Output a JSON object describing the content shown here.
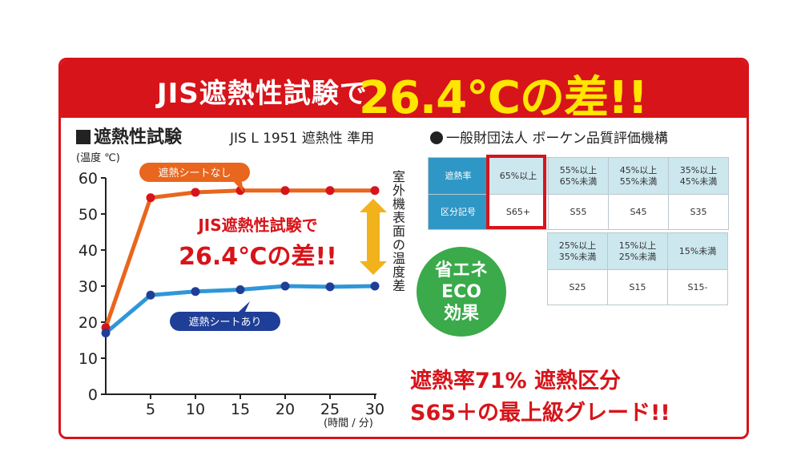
{
  "banner": {
    "prefix": "JIS遮熱性試験で",
    "highlight": "26.4℃の差!!"
  },
  "section": {
    "title": "遮熱性試験",
    "subtitle": "JIS L 1951 遮熱性 準用",
    "org": "一般財団法人 ボーケン品質評価機構"
  },
  "chart_data": {
    "type": "line",
    "ylabel": "(温度 ℃)",
    "xlabel": "(時間 / 分)",
    "x_ticks": [
      "5",
      "10",
      "15",
      "20",
      "25",
      "30"
    ],
    "y_ticks": [
      "0",
      "10",
      "20",
      "30",
      "40",
      "50",
      "60"
    ],
    "xlim": [
      0,
      30
    ],
    "ylim": [
      0,
      60
    ],
    "grid": false,
    "series": [
      {
        "name": "遮熱シートなし",
        "color": "#e8661e",
        "x": [
          0,
          5,
          10,
          15,
          20,
          25,
          30
        ],
        "y": [
          18.5,
          54.5,
          56,
          56.5,
          56.5,
          56.5,
          56.5
        ]
      },
      {
        "name": "遮熱シートあり",
        "color": "#2f97d8",
        "x": [
          0,
          5,
          10,
          15,
          20,
          25,
          30
        ],
        "y": [
          17,
          27.5,
          28.5,
          29,
          30,
          29.8,
          30
        ]
      }
    ],
    "annotation": {
      "line1": "JIS遮熱性試験で",
      "line2": "26.4℃の差!!"
    },
    "side_label": "室外機表面の温度差"
  },
  "eco": {
    "line1": "省エネ",
    "line2": "ECO",
    "line3": "効果"
  },
  "grade_table": {
    "top": {
      "row1": [
        "遮熱率",
        "65%以上",
        "55%以上\n65%未満",
        "45%以上\n55%未満",
        "35%以上\n45%未満"
      ],
      "row2": [
        "区分記号",
        "S65+",
        "S55",
        "S45",
        "S35"
      ]
    },
    "bottom": {
      "row1": [
        "25%以上\n35%未満",
        "15%以上\n25%未満",
        "15%未満"
      ],
      "row2": [
        "S25",
        "S15",
        "S15-"
      ]
    }
  },
  "summary": {
    "line1": "遮熱率71% 遮熱区分",
    "line2": "S65＋の最上級グレード!!"
  },
  "colors": {
    "red": "#d7141a",
    "yellow": "#ffe600",
    "orange": "#e8661e",
    "blue": "#2f97d8",
    "navy": "#1f3e97",
    "green": "#3aaa4a",
    "gold": "#f2b21b"
  }
}
